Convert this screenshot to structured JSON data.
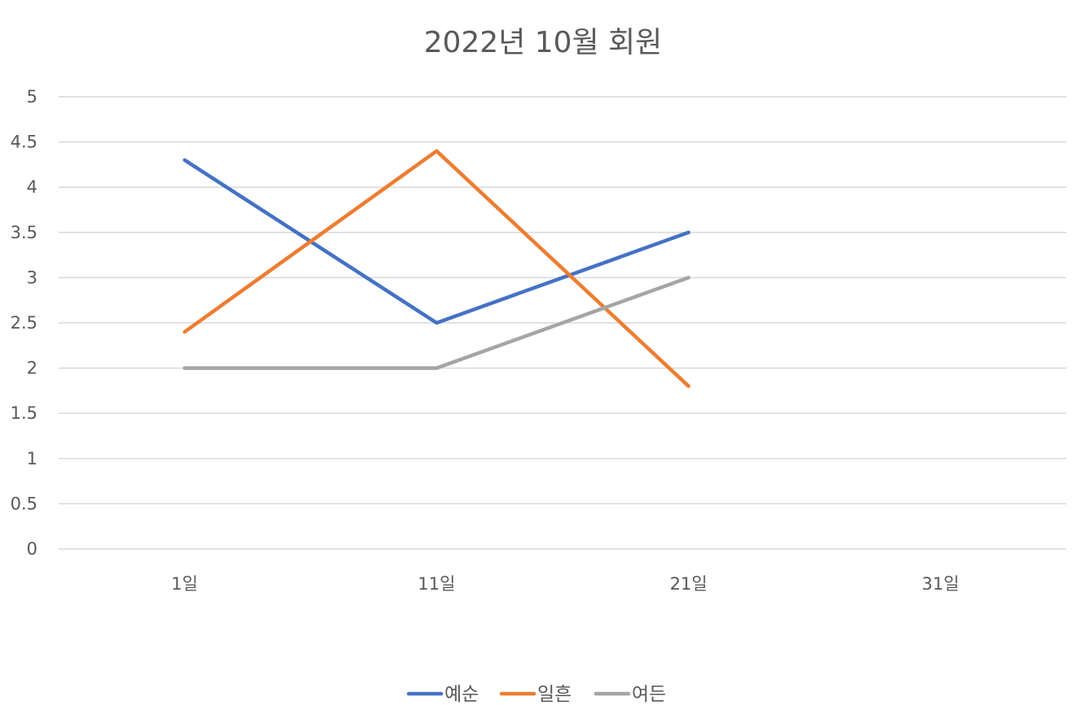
{
  "chart_data": {
    "type": "line",
    "title": "2022년 10월 회원",
    "xlabel": "",
    "ylabel": "",
    "categories": [
      "1일",
      "11일",
      "21일",
      "31일"
    ],
    "ylim": [
      0,
      5
    ],
    "yticks": [
      "0",
      "0.5",
      "1",
      "1.5",
      "2",
      "2.5",
      "3",
      "3.5",
      "4",
      "4.5",
      "5"
    ],
    "grid": true,
    "legend_position": "bottom",
    "series": [
      {
        "name": "예순",
        "color": "#4472C4",
        "values": [
          4.3,
          2.5,
          3.5,
          null
        ]
      },
      {
        "name": "일흔",
        "color": "#ED7D31",
        "values": [
          2.4,
          4.4,
          1.8,
          null
        ]
      },
      {
        "name": "여든",
        "color": "#A5A5A5",
        "values": [
          2.0,
          2.0,
          3.0,
          null
        ]
      }
    ]
  }
}
